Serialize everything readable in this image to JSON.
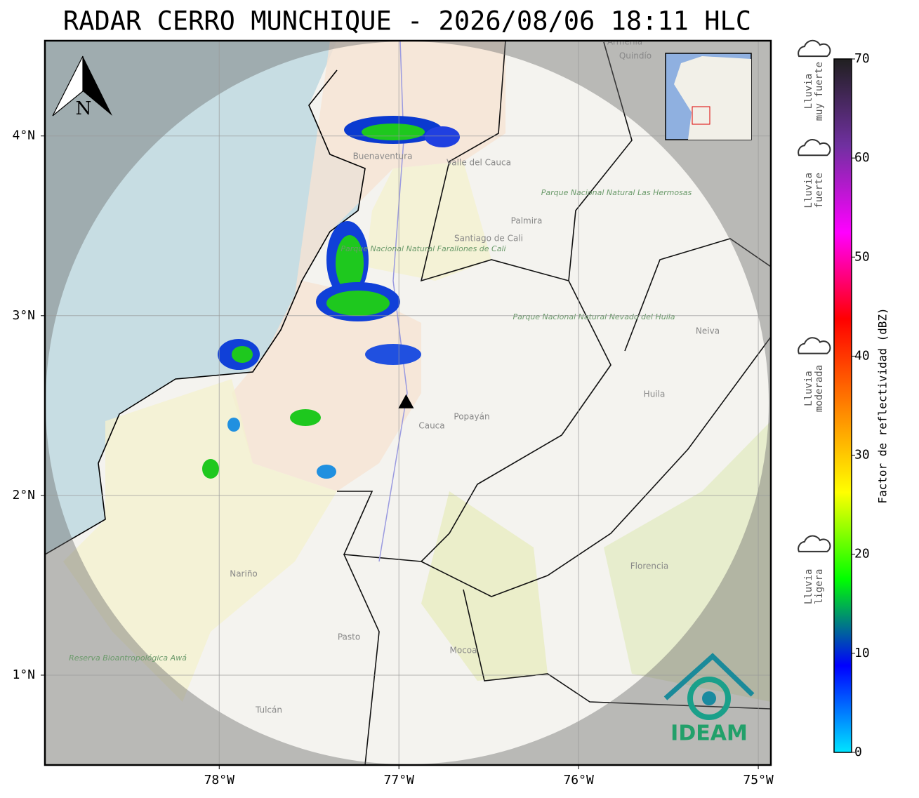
{
  "map": {
    "title": "RADAR CERRO MUNCHIQUE - 2026/08/06 18:11 HLC",
    "xlim": [
      -78.97,
      -74.93
    ],
    "ylim": [
      0.5,
      4.53
    ],
    "xticks": [
      {
        "value": -78,
        "label": "78°W"
      },
      {
        "value": -77,
        "label": "77°W"
      },
      {
        "value": -76,
        "label": "76°W"
      },
      {
        "value": -75,
        "label": "75°W"
      }
    ],
    "yticks": [
      {
        "value": 1,
        "label": "1°N"
      },
      {
        "value": 2,
        "label": "2°N"
      },
      {
        "value": 3,
        "label": "3°N"
      },
      {
        "value": 4,
        "label": "4°N"
      }
    ],
    "grid": true,
    "radar": {
      "lon": -76.96,
      "lat": 2.52
    },
    "north": "N",
    "places": [
      "Buenaventura",
      "Valle del Cauca",
      "Palmira",
      "Santiago de Cali",
      "Parque Nacional Natural Farallones de Cali",
      "Parque Nacional Natural Las Hermosas",
      "Parque Nacional Natural Nevado del Huila",
      "Neiva",
      "Huila",
      "Popayán",
      "Cauca",
      "Nariño",
      "Pasto",
      "Mocoa",
      "Florencia",
      "Reserva Bioantropológica Awá",
      "Tulcán",
      "Armenia",
      "Quindío"
    ],
    "logo": "IDEAM",
    "colorbar": {
      "label": "Factor de reflectividad (dBZ)",
      "lim": [
        0,
        70
      ],
      "ticks": [
        0,
        10,
        20,
        30,
        40,
        50,
        60,
        70
      ],
      "colors": [
        "#00e5ff",
        "#0000ff",
        "#00ff00",
        "#ffff00",
        "#ff8000",
        "#ff0000",
        "#ff00ff",
        "#7030a0",
        "#202020"
      ]
    },
    "legend": [
      {
        "lines": [
          "Lluvia",
          "muy fuerte"
        ],
        "value": 60
      },
      {
        "lines": [
          "Lluvia",
          "fuerte"
        ],
        "value": 50
      },
      {
        "lines": [
          "Lluvia",
          "moderada"
        ],
        "value": 30
      },
      {
        "lines": [
          "Lluvia",
          "ligera"
        ],
        "value": 10
      }
    ]
  }
}
